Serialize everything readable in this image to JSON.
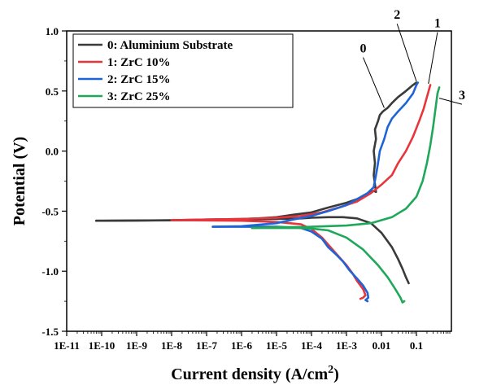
{
  "chart_data": {
    "type": "line",
    "xlabel": "Current density (A/cm",
    "xlabel_sup": "2",
    "xlabel_close": ")",
    "ylabel": "Potential (V)",
    "x_scale": "log",
    "xlim": [
      1e-11,
      1
    ],
    "ylim": [
      -1.5,
      1.0
    ],
    "x_ticks": [
      {
        "value": 1e-11,
        "label": "1E-11"
      },
      {
        "value": 1e-10,
        "label": "1E-10"
      },
      {
        "value": 1e-09,
        "label": "1E-9"
      },
      {
        "value": 1e-08,
        "label": "1E-8"
      },
      {
        "value": 1e-07,
        "label": "1E-7"
      },
      {
        "value": 1e-06,
        "label": "1E-6"
      },
      {
        "value": 1e-05,
        "label": "1E-5"
      },
      {
        "value": 0.0001,
        "label": "1E-4"
      },
      {
        "value": 0.001,
        "label": "1E-3"
      },
      {
        "value": 0.01,
        "label": "0.01"
      },
      {
        "value": 0.1,
        "label": "0.1"
      }
    ],
    "y_ticks": [
      {
        "value": -1.5,
        "label": "-1.5"
      },
      {
        "value": -1.0,
        "label": "-1.0"
      },
      {
        "value": -0.5,
        "label": "-0.5"
      },
      {
        "value": 0.0,
        "label": "0.0"
      },
      {
        "value": 0.5,
        "label": "0.5"
      },
      {
        "value": 1.0,
        "label": "1.0"
      }
    ],
    "grid": false,
    "legend_position": "top-left",
    "series": [
      {
        "name": "0: Aluminium Substrate",
        "color": "#3a3a3a",
        "points": [
          [
            7e-11,
            -0.58
          ],
          [
            1e-09,
            -0.578
          ],
          [
            1e-08,
            -0.575
          ],
          [
            1e-07,
            -0.57
          ],
          [
            1e-06,
            -0.565
          ],
          [
            3e-06,
            -0.56
          ],
          [
            1e-05,
            -0.55
          ],
          [
            3e-05,
            -0.53
          ],
          [
            0.0001,
            -0.51
          ],
          [
            0.0003,
            -0.47
          ],
          [
            0.001,
            -0.43
          ],
          [
            0.002,
            -0.4
          ],
          [
            0.003,
            -0.38
          ],
          [
            0.004,
            -0.36
          ],
          [
            0.005,
            -0.34
          ],
          [
            0.006,
            -0.33
          ],
          [
            0.007,
            -0.34
          ],
          [
            0.006,
            -0.2
          ],
          [
            0.0065,
            -0.1
          ],
          [
            0.006,
            0.0
          ],
          [
            0.007,
            0.1
          ],
          [
            0.0065,
            0.18
          ],
          [
            0.008,
            0.25
          ],
          [
            0.009,
            0.3
          ],
          [
            0.011,
            0.33
          ],
          [
            0.015,
            0.36
          ],
          [
            0.02,
            0.4
          ],
          [
            0.03,
            0.45
          ],
          [
            0.05,
            0.5
          ],
          [
            0.08,
            0.55
          ],
          [
            0.1,
            0.57
          ]
        ],
        "cathodic": [
          [
            7e-11,
            -0.58
          ],
          [
            1e-09,
            -0.578
          ],
          [
            1e-07,
            -0.575
          ],
          [
            1e-06,
            -0.57
          ],
          [
            1e-05,
            -0.565
          ],
          [
            5e-05,
            -0.56
          ],
          [
            0.0001,
            -0.555
          ],
          [
            0.0003,
            -0.55
          ],
          [
            0.0008,
            -0.55
          ],
          [
            0.002,
            -0.56
          ],
          [
            0.005,
            -0.6
          ],
          [
            0.01,
            -0.68
          ],
          [
            0.02,
            -0.8
          ],
          [
            0.03,
            -0.9
          ],
          [
            0.04,
            -0.98
          ],
          [
            0.05,
            -1.05
          ],
          [
            0.06,
            -1.1
          ]
        ]
      },
      {
        "name": "1: ZrC 10%",
        "color": "#e8353c",
        "points": [
          [
            1e-08,
            -0.575
          ],
          [
            1e-07,
            -0.57
          ],
          [
            1e-06,
            -0.565
          ],
          [
            1e-05,
            -0.555
          ],
          [
            5e-05,
            -0.54
          ],
          [
            0.0002,
            -0.51
          ],
          [
            0.0006,
            -0.47
          ],
          [
            0.002,
            -0.42
          ],
          [
            0.005,
            -0.35
          ],
          [
            0.01,
            -0.28
          ],
          [
            0.02,
            -0.2
          ],
          [
            0.03,
            -0.1
          ],
          [
            0.05,
            0.0
          ],
          [
            0.08,
            0.12
          ],
          [
            0.12,
            0.25
          ],
          [
            0.16,
            0.35
          ],
          [
            0.2,
            0.45
          ],
          [
            0.25,
            0.55
          ]
        ],
        "cathodic": [
          [
            1e-08,
            -0.575
          ],
          [
            1e-06,
            -0.58
          ],
          [
            1e-05,
            -0.59
          ],
          [
            5e-05,
            -0.61
          ],
          [
            0.0001,
            -0.65
          ],
          [
            0.0002,
            -0.72
          ],
          [
            0.0004,
            -0.82
          ],
          [
            0.0007,
            -0.9
          ],
          [
            0.001,
            -0.95
          ],
          [
            0.0015,
            -1.02
          ],
          [
            0.002,
            -1.08
          ],
          [
            0.003,
            -1.15
          ],
          [
            0.0035,
            -1.2
          ],
          [
            0.003,
            -1.22
          ],
          [
            0.0025,
            -1.23
          ]
        ]
      },
      {
        "name": "2: ZrC 15%",
        "color": "#1f64d6",
        "points": [
          [
            1.5e-07,
            -0.63
          ],
          [
            1e-06,
            -0.625
          ],
          [
            1e-05,
            -0.6
          ],
          [
            3e-05,
            -0.57
          ],
          [
            0.0001,
            -0.54
          ],
          [
            0.0003,
            -0.5
          ],
          [
            0.001,
            -0.45
          ],
          [
            0.002,
            -0.4
          ],
          [
            0.004,
            -0.35
          ],
          [
            0.006,
            -0.3
          ],
          [
            0.007,
            -0.2
          ],
          [
            0.008,
            -0.1
          ],
          [
            0.009,
            0.0
          ],
          [
            0.012,
            0.1
          ],
          [
            0.015,
            0.2
          ],
          [
            0.02,
            0.27
          ],
          [
            0.03,
            0.33
          ],
          [
            0.05,
            0.4
          ],
          [
            0.08,
            0.48
          ],
          [
            0.1,
            0.55
          ],
          [
            0.11,
            0.57
          ]
        ],
        "cathodic": [
          [
            1.5e-07,
            -0.63
          ],
          [
            1e-06,
            -0.63
          ],
          [
            1e-05,
            -0.63
          ],
          [
            5e-05,
            -0.64
          ],
          [
            0.0001,
            -0.67
          ],
          [
            0.0002,
            -0.73
          ],
          [
            0.0003,
            -0.8
          ],
          [
            0.0005,
            -0.86
          ],
          [
            0.0008,
            -0.92
          ],
          [
            0.0012,
            -0.99
          ],
          [
            0.002,
            -1.06
          ],
          [
            0.003,
            -1.12
          ],
          [
            0.004,
            -1.18
          ],
          [
            0.0042,
            -1.22
          ],
          [
            0.0035,
            -1.24
          ],
          [
            0.004,
            -1.25
          ]
        ]
      },
      {
        "name": "3: ZrC 25%",
        "color": "#1fa85a",
        "points": [
          [
            2e-06,
            -0.64
          ],
          [
            1e-05,
            -0.635
          ],
          [
            0.0001,
            -0.63
          ],
          [
            0.001,
            -0.62
          ],
          [
            0.005,
            -0.6
          ],
          [
            0.02,
            -0.55
          ],
          [
            0.05,
            -0.48
          ],
          [
            0.1,
            -0.38
          ],
          [
            0.15,
            -0.25
          ],
          [
            0.2,
            -0.1
          ],
          [
            0.25,
            0.05
          ],
          [
            0.3,
            0.2
          ],
          [
            0.35,
            0.35
          ],
          [
            0.4,
            0.48
          ],
          [
            0.45,
            0.53
          ]
        ],
        "cathodic": [
          [
            2e-06,
            -0.64
          ],
          [
            1e-05,
            -0.64
          ],
          [
            5e-05,
            -0.64
          ],
          [
            0.0001,
            -0.645
          ],
          [
            0.0003,
            -0.66
          ],
          [
            0.001,
            -0.72
          ],
          [
            0.003,
            -0.82
          ],
          [
            0.008,
            -0.95
          ],
          [
            0.015,
            -1.05
          ],
          [
            0.025,
            -1.15
          ],
          [
            0.035,
            -1.22
          ],
          [
            0.04,
            -1.26
          ],
          [
            0.045,
            -1.25
          ]
        ]
      }
    ],
    "annotations": [
      {
        "text": "0",
        "at": [
          0.003,
          0.82
        ],
        "arrow_to": [
          0.012,
          0.36
        ]
      },
      {
        "text": "2",
        "at": [
          0.028,
          1.1
        ],
        "arrow_to": [
          0.1,
          0.58
        ]
      },
      {
        "text": "1",
        "at": [
          0.4,
          1.03
        ],
        "arrow_to": [
          0.22,
          0.56
        ]
      },
      {
        "text": "3",
        "at": [
          2.0,
          0.43
        ],
        "arrow_to": [
          0.45,
          0.44
        ]
      }
    ]
  }
}
